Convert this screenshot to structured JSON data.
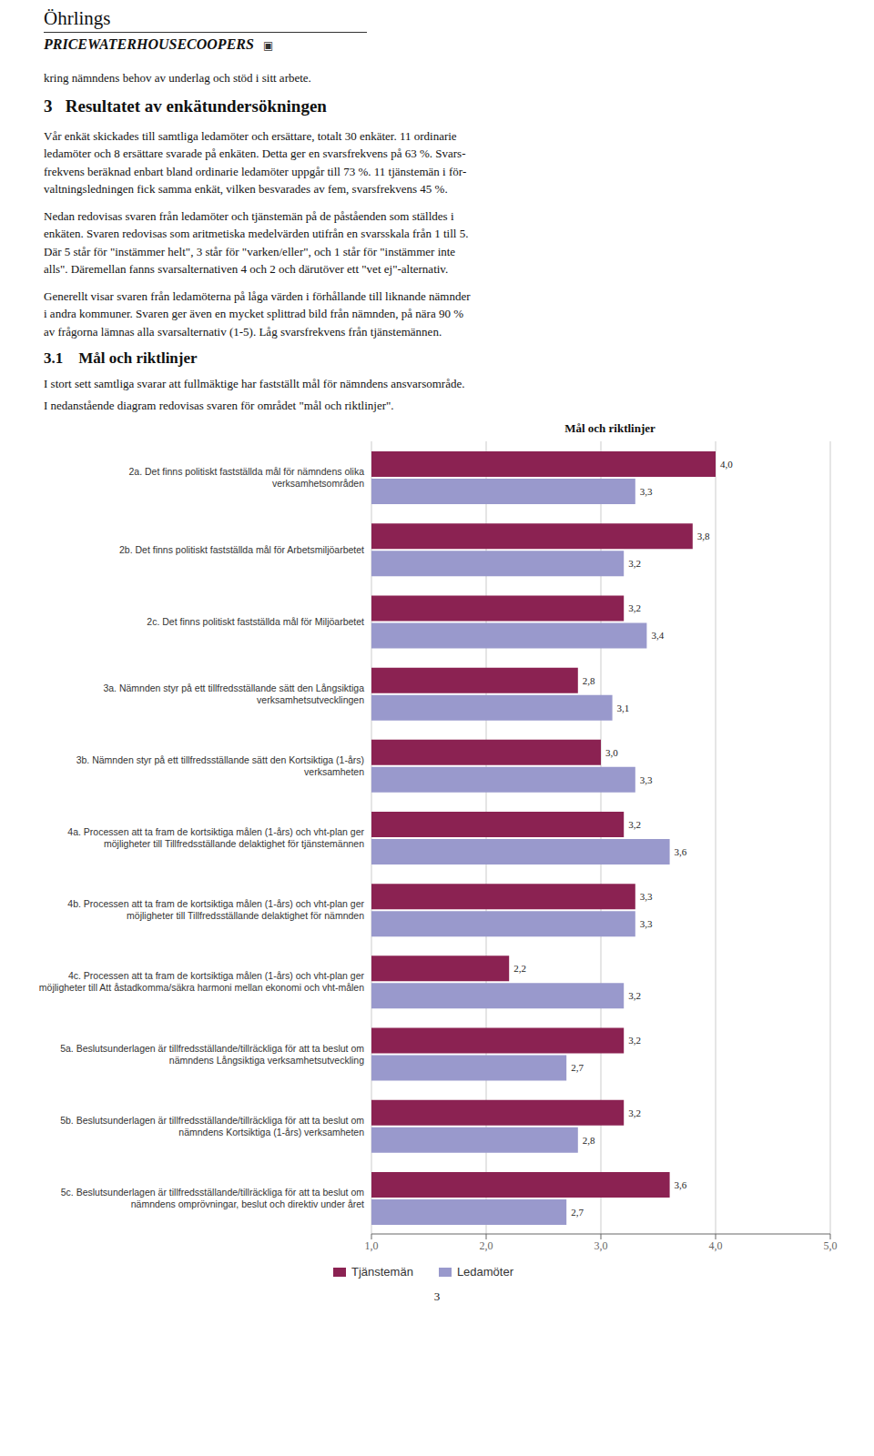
{
  "chart_data": {
    "type": "bar",
    "orientation": "horizontal",
    "title": "Mål och riktlinjer",
    "annotations": [
      "Öhrlings",
      "PRICEWATERHOUSECOOPERS",
      "▣",
      "kring nämndens behov av underlag och stöd i sitt arbete.",
      "3   Resultatet av enkätundersökningen",
      "Vår enkät skickades till samtliga ledamöter och ersättare, totalt 30 enkäter. 11 ordinarie\nledamöter och 8 ersättare svarade på enkäten. Detta ger en svarsfrekvens på 63 %. Svars-\nfrekvens beräknad enbart bland ordinarie ledamöter uppgår till 73 %. 11 tjänstemän i för-\nvaltningsledningen fick samma enkät, vilken besvarades av fem, svarsfrekvens 45 %.",
      "Nedan redovisas svaren från ledamöter och tjänstemän på de påståenden som ställdes i\nenkäten. Svaren redovisas som aritmetiska medelvärden utifrån en svarsskala från 1 till 5.\nDär 5 står för \"instämmer helt\", 3 står för \"varken/eller\", och 1 står för \"instämmer inte\nalls\". Däremellan fanns svarsalternativen 4 och 2 och därutöver ett \"vet ej\"-alternativ.",
      "Generellt visar svaren från ledamöterna på låga värden i förhållande till liknande nämnder\ni andra kommuner. Svaren ger även en mycket splittrad bild från nämnden, på nära 90 %\nav frågorna lämnas alla svarsalternativ (1-5). Låg svarsfrekvens från tjänstemännen.",
      "3.1    Mål och riktlinjer",
      "I stort sett samtliga svarar att fullmäktige har fastställt mål för nämndens ansvarsområde.",
      "I nedanstående diagram redovisas svaren för området \"mål och riktlinjer\".",
      "3"
    ],
    "categories": [
      "2a. Det finns politiskt fastställda mål för nämndens olika\nverksamhetsområden",
      "2b. Det finns politiskt fastställda mål för Arbetsmiljöarbetet",
      "2c. Det finns politiskt fastställda mål för Miljöarbetet",
      "3a. Nämnden styr på ett tillfredsställande sätt den Långsiktiga\nverksamhetsutvecklingen",
      "3b. Nämnden styr på ett tillfredsställande sätt den Kortsiktiga (1-års)\nverksamheten",
      "4a. Processen att ta fram de kortsiktiga målen (1-års) och vht-plan ger\nmöjligheter till Tillfredsställande delaktighet för tjänstemännen",
      "4b. Processen att ta fram de kortsiktiga målen (1-års) och vht-plan ger\nmöjligheter till Tillfredsställande delaktighet för nämnden",
      "4c. Processen att ta fram de kortsiktiga målen (1-års) och vht-plan ger\nmöjligheter till Att åstadkomma/säkra harmoni mellan ekonomi och vht-målen",
      "5a. Beslutsunderlagen är tillfredsställande/tillräckliga för att ta beslut om\nnämndens Långsiktiga verksamhetsutveckling",
      "5b. Beslutsunderlagen är tillfredsställande/tillräckliga för att ta beslut om\nnämndens Kortsiktiga (1-års) verksamheten",
      "5c. Beslutsunderlagen är tillfredsställande/tillräckliga för att ta beslut om\nnämndens omprövningar, beslut och direktiv under året"
    ],
    "series": [
      {
        "name": "Tjänstemän",
        "color": "#8B2252",
        "values": [
          4.0,
          3.8,
          3.2,
          2.8,
          3.0,
          3.2,
          3.3,
          2.2,
          3.2,
          3.2,
          3.6
        ],
        "value_labels": [
          "4,0",
          "3,8",
          "3,2",
          "2,8",
          "3,0",
          "3,2",
          "3,3",
          "2,2",
          "3,2",
          "3,2",
          "3,6"
        ]
      },
      {
        "name": "Ledamöter",
        "color": "#9999CC",
        "values": [
          3.3,
          3.2,
          3.4,
          3.1,
          3.3,
          3.6,
          3.3,
          3.2,
          2.7,
          2.8,
          2.7
        ],
        "value_labels": [
          "3,3",
          "3,2",
          "3,4",
          "3,1",
          "3,3",
          "3,6",
          "3,3",
          "3,2",
          "2,7",
          "2,8",
          "2,7"
        ]
      }
    ],
    "xlim": [
      1.0,
      5.0
    ],
    "xticks": [
      {
        "value": 1.0,
        "label": "1,0"
      },
      {
        "value": 2.0,
        "label": "2,0"
      },
      {
        "value": 3.0,
        "label": "3,0"
      },
      {
        "value": 4.0,
        "label": "4,0"
      },
      {
        "value": 5.0,
        "label": "5,0"
      }
    ],
    "grid": true,
    "data_labels": true,
    "legend": "bottom"
  }
}
